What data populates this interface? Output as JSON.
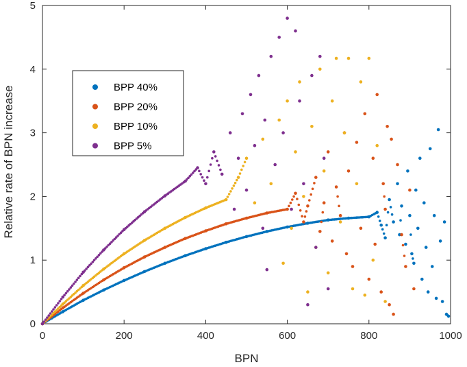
{
  "chart_data": {
    "type": "scatter",
    "title": "",
    "xlabel": "BPN",
    "ylabel": "Relative rate of BPN increase",
    "xlim": [
      0,
      1000
    ],
    "ylim": [
      0,
      5
    ],
    "xticks": [
      "0",
      "200",
      "400",
      "600",
      "800",
      "1000"
    ],
    "yticks": [
      "0",
      "1",
      "2",
      "3",
      "4",
      "5"
    ],
    "grid": false,
    "box": true,
    "legend_position": "upper-left",
    "series": [
      {
        "name": "BPP 40%",
        "color": "#0072BD",
        "points": [
          [
            0,
            0
          ],
          [
            50,
            0.19
          ],
          [
            100,
            0.37
          ],
          [
            150,
            0.53
          ],
          [
            200,
            0.68
          ],
          [
            250,
            0.82
          ],
          [
            300,
            0.95
          ],
          [
            350,
            1.07
          ],
          [
            400,
            1.18
          ],
          [
            450,
            1.28
          ],
          [
            500,
            1.37
          ],
          [
            550,
            1.45
          ],
          [
            600,
            1.52
          ],
          [
            650,
            1.58
          ],
          [
            700,
            1.63
          ],
          [
            750,
            1.66
          ],
          [
            800,
            1.68
          ],
          [
            820,
            1.75
          ],
          [
            830,
            1.55
          ],
          [
            840,
            1.35
          ],
          [
            850,
            1.95
          ],
          [
            860,
            1.6
          ],
          [
            870,
            2.2
          ],
          [
            875,
            1.4
          ],
          [
            880,
            1.85
          ],
          [
            890,
            1.25
          ],
          [
            895,
            2.4
          ],
          [
            900,
            1.7
          ],
          [
            905,
            1.1
          ],
          [
            910,
            0.95
          ],
          [
            915,
            2.1
          ],
          [
            920,
            1.5
          ],
          [
            925,
            2.6
          ],
          [
            930,
            0.7
          ],
          [
            935,
            1.9
          ],
          [
            940,
            1.2
          ],
          [
            945,
            0.5
          ],
          [
            950,
            2.75
          ],
          [
            955,
            0.9
          ],
          [
            960,
            1.7
          ],
          [
            965,
            0.4
          ],
          [
            970,
            3.05
          ],
          [
            975,
            1.3
          ],
          [
            980,
            0.35
          ],
          [
            985,
            1.6
          ],
          [
            990,
            0.15
          ],
          [
            995,
            0.12
          ]
        ]
      },
      {
        "name": "BPP 20%",
        "color": "#D95319",
        "points": [
          [
            0,
            0
          ],
          [
            50,
            0.25
          ],
          [
            100,
            0.48
          ],
          [
            150,
            0.69
          ],
          [
            200,
            0.88
          ],
          [
            250,
            1.05
          ],
          [
            300,
            1.2
          ],
          [
            350,
            1.34
          ],
          [
            400,
            1.46
          ],
          [
            450,
            1.57
          ],
          [
            500,
            1.66
          ],
          [
            550,
            1.74
          ],
          [
            600,
            1.8
          ],
          [
            620,
            2.05
          ],
          [
            640,
            1.6
          ],
          [
            650,
            1.85
          ],
          [
            670,
            2.3
          ],
          [
            680,
            1.45
          ],
          [
            690,
            1.9
          ],
          [
            700,
            2.7
          ],
          [
            710,
            1.3
          ],
          [
            720,
            2.15
          ],
          [
            730,
            1.7
          ],
          [
            740,
            3.0
          ],
          [
            745,
            1.1
          ],
          [
            750,
            2.4
          ],
          [
            760,
            0.9
          ],
          [
            770,
            2.85
          ],
          [
            780,
            1.5
          ],
          [
            790,
            3.3
          ],
          [
            800,
            0.7
          ],
          [
            810,
            2.6
          ],
          [
            815,
            1.25
          ],
          [
            820,
            3.6
          ],
          [
            830,
            0.5
          ],
          [
            835,
            2.2
          ],
          [
            840,
            1.8
          ],
          [
            845,
            3.1
          ],
          [
            850,
            0.3
          ],
          [
            855,
            2.9
          ],
          [
            860,
            0.15
          ],
          [
            870,
            2.5
          ],
          [
            880,
            1.4
          ],
          [
            890,
            0.9
          ],
          [
            900,
            2.1
          ],
          [
            910,
            0.55
          ]
        ]
      },
      {
        "name": "BPP 10%",
        "color": "#EDB120",
        "points": [
          [
            0,
            0
          ],
          [
            50,
            0.31
          ],
          [
            100,
            0.6
          ],
          [
            150,
            0.86
          ],
          [
            200,
            1.1
          ],
          [
            250,
            1.31
          ],
          [
            300,
            1.5
          ],
          [
            350,
            1.67
          ],
          [
            400,
            1.82
          ],
          [
            450,
            1.95
          ],
          [
            480,
            2.3
          ],
          [
            500,
            2.6
          ],
          [
            520,
            1.9
          ],
          [
            540,
            2.9
          ],
          [
            560,
            2.2
          ],
          [
            580,
            3.2
          ],
          [
            590,
            0.95
          ],
          [
            600,
            3.5
          ],
          [
            610,
            1.5
          ],
          [
            620,
            2.7
          ],
          [
            630,
            3.8
          ],
          [
            640,
            2.0
          ],
          [
            650,
            0.5
          ],
          [
            660,
            3.1
          ],
          [
            670,
            1.2
          ],
          [
            680,
            4.0
          ],
          [
            690,
            2.4
          ],
          [
            700,
            0.8
          ],
          [
            710,
            3.5
          ],
          [
            720,
            4.17
          ],
          [
            730,
            1.6
          ],
          [
            740,
            3.0
          ],
          [
            750,
            4.17
          ],
          [
            760,
            0.55
          ],
          [
            770,
            2.2
          ],
          [
            780,
            3.8
          ],
          [
            790,
            0.45
          ],
          [
            800,
            4.17
          ],
          [
            810,
            1.0
          ],
          [
            820,
            2.8
          ],
          [
            840,
            0.35
          ]
        ]
      },
      {
        "name": "BPP 5%",
        "color": "#7E2F8E",
        "points": [
          [
            0,
            0
          ],
          [
            50,
            0.42
          ],
          [
            100,
            0.81
          ],
          [
            150,
            1.16
          ],
          [
            200,
            1.48
          ],
          [
            250,
            1.76
          ],
          [
            300,
            2.01
          ],
          [
            350,
            2.24
          ],
          [
            380,
            2.45
          ],
          [
            400,
            2.2
          ],
          [
            420,
            2.7
          ],
          [
            440,
            2.35
          ],
          [
            460,
            3.0
          ],
          [
            470,
            1.8
          ],
          [
            480,
            2.6
          ],
          [
            490,
            3.3
          ],
          [
            500,
            2.1
          ],
          [
            510,
            3.6
          ],
          [
            520,
            2.8
          ],
          [
            530,
            3.9
          ],
          [
            540,
            1.5
          ],
          [
            545,
            3.2
          ],
          [
            550,
            0.85
          ],
          [
            560,
            4.2
          ],
          [
            570,
            2.5
          ],
          [
            580,
            4.5
          ],
          [
            590,
            3.0
          ],
          [
            600,
            4.8
          ],
          [
            610,
            1.8
          ],
          [
            620,
            4.6
          ],
          [
            630,
            3.5
          ],
          [
            640,
            2.2
          ],
          [
            650,
            0.3
          ],
          [
            660,
            3.9
          ],
          [
            670,
            1.2
          ],
          [
            680,
            4.2
          ],
          [
            690,
            2.6
          ],
          [
            700,
            0.55
          ]
        ]
      }
    ]
  }
}
